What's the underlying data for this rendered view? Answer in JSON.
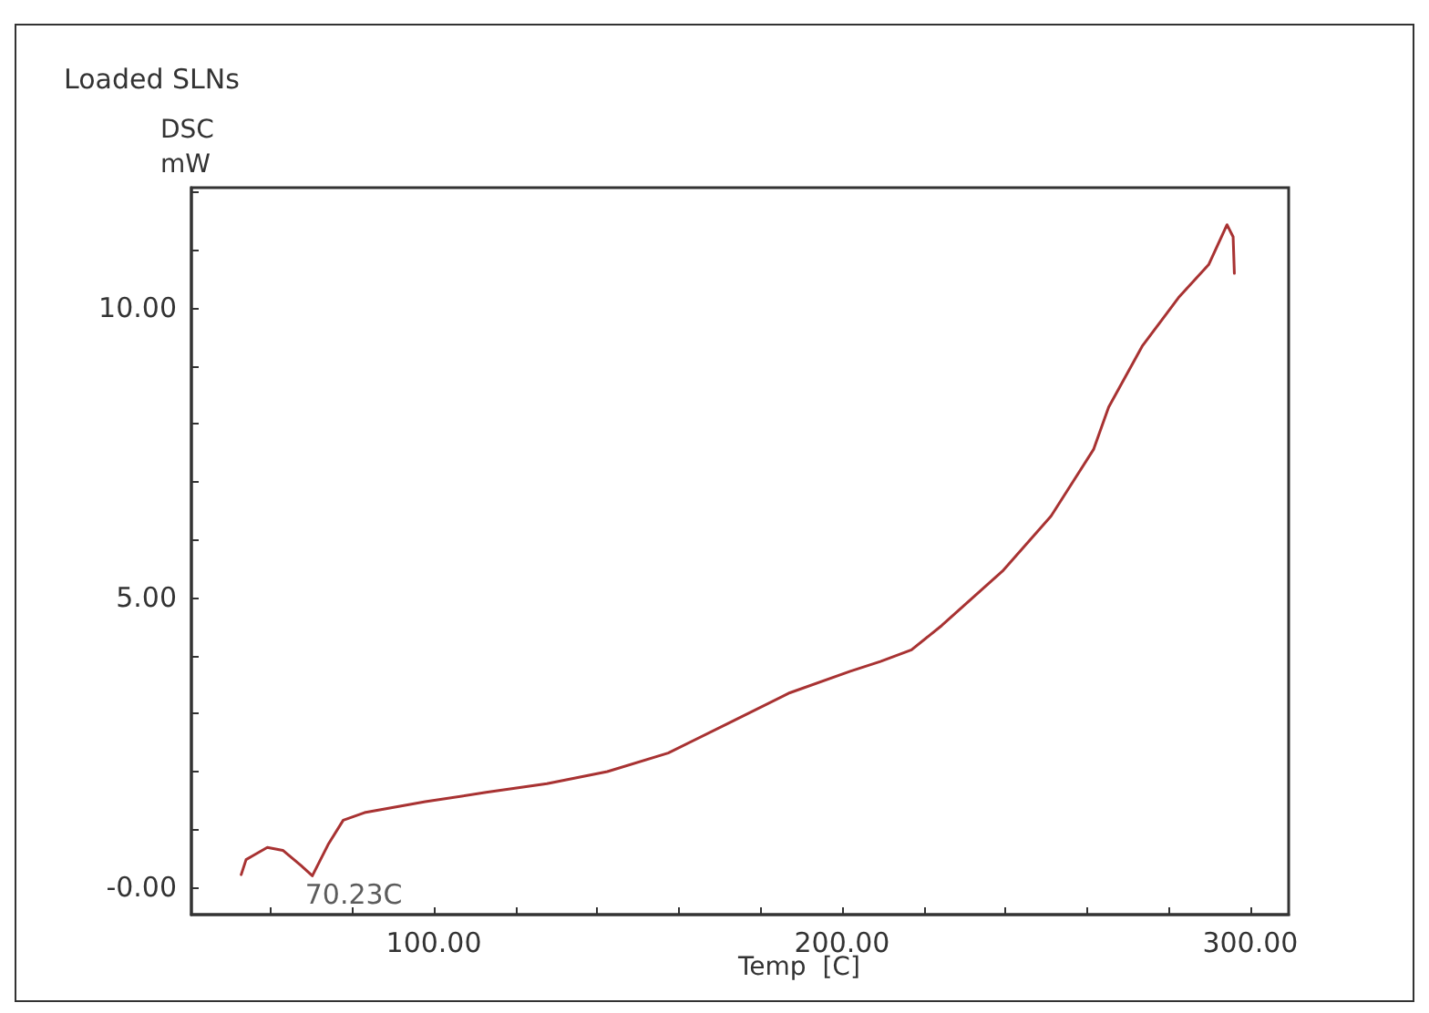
{
  "chart_data": {
    "type": "line",
    "title": "Loaded SLNs",
    "ylabel": "DSC\nmW",
    "xlabel": "Temp  [C]",
    "xlim": [
      40.6,
      309.4
    ],
    "ylim": [
      -0.47,
      12.08
    ],
    "xticks": [
      {
        "value": 60,
        "label": null
      },
      {
        "value": 80,
        "label": null
      },
      {
        "value": 100,
        "label": "100.00"
      },
      {
        "value": 120,
        "label": null
      },
      {
        "value": 140,
        "label": null
      },
      {
        "value": 160,
        "label": null
      },
      {
        "value": 180,
        "label": null
      },
      {
        "value": 200,
        "label": "200.00"
      },
      {
        "value": 220,
        "label": null
      },
      {
        "value": 240,
        "label": null
      },
      {
        "value": 260,
        "label": null
      },
      {
        "value": 280,
        "label": null
      },
      {
        "value": 300,
        "label": "300.00"
      }
    ],
    "yticks": [
      {
        "value": 0,
        "label": "-0.00"
      },
      {
        "value": 1,
        "label": null
      },
      {
        "value": 2,
        "label": null
      },
      {
        "value": 3,
        "label": null
      },
      {
        "value": 4,
        "label": null
      },
      {
        "value": 5,
        "label": "5.00"
      },
      {
        "value": 6,
        "label": null
      },
      {
        "value": 7,
        "label": null
      },
      {
        "value": 8,
        "label": null
      },
      {
        "value": 9,
        "label": null
      },
      {
        "value": 10,
        "label": "10.00"
      },
      {
        "value": 11,
        "label": null
      },
      {
        "value": 12,
        "label": null
      }
    ],
    "grid": false,
    "marker": "none",
    "line_style": "solid",
    "annotations": [
      {
        "text": "70.23C",
        "x": 70.23,
        "y": 0.2
      }
    ],
    "series": [
      {
        "color": "#a83232",
        "x": [
          52.8,
          54,
          55.5,
          59.2,
          63,
          67.4,
          70.23,
          74.1,
          77.8,
          83,
          97.9,
          112.8,
          127.7,
          142.5,
          157.4,
          172.3,
          187.2,
          202,
          209.4,
          217,
          224.4,
          239.3,
          251.2,
          261.6,
          265.3,
          273.5,
          282.4,
          289.8,
          294.3,
          295.8,
          296.1
        ],
        "values": [
          0.22,
          0.48,
          0.54,
          0.69,
          0.64,
          0.38,
          0.2,
          0.74,
          1.16,
          1.29,
          1.48,
          1.64,
          1.79,
          2.0,
          2.32,
          2.84,
          3.36,
          3.73,
          3.9,
          4.1,
          4.52,
          5.46,
          6.41,
          7.56,
          8.29,
          9.34,
          10.18,
          10.75,
          11.44,
          11.23,
          10.6
        ]
      }
    ]
  }
}
